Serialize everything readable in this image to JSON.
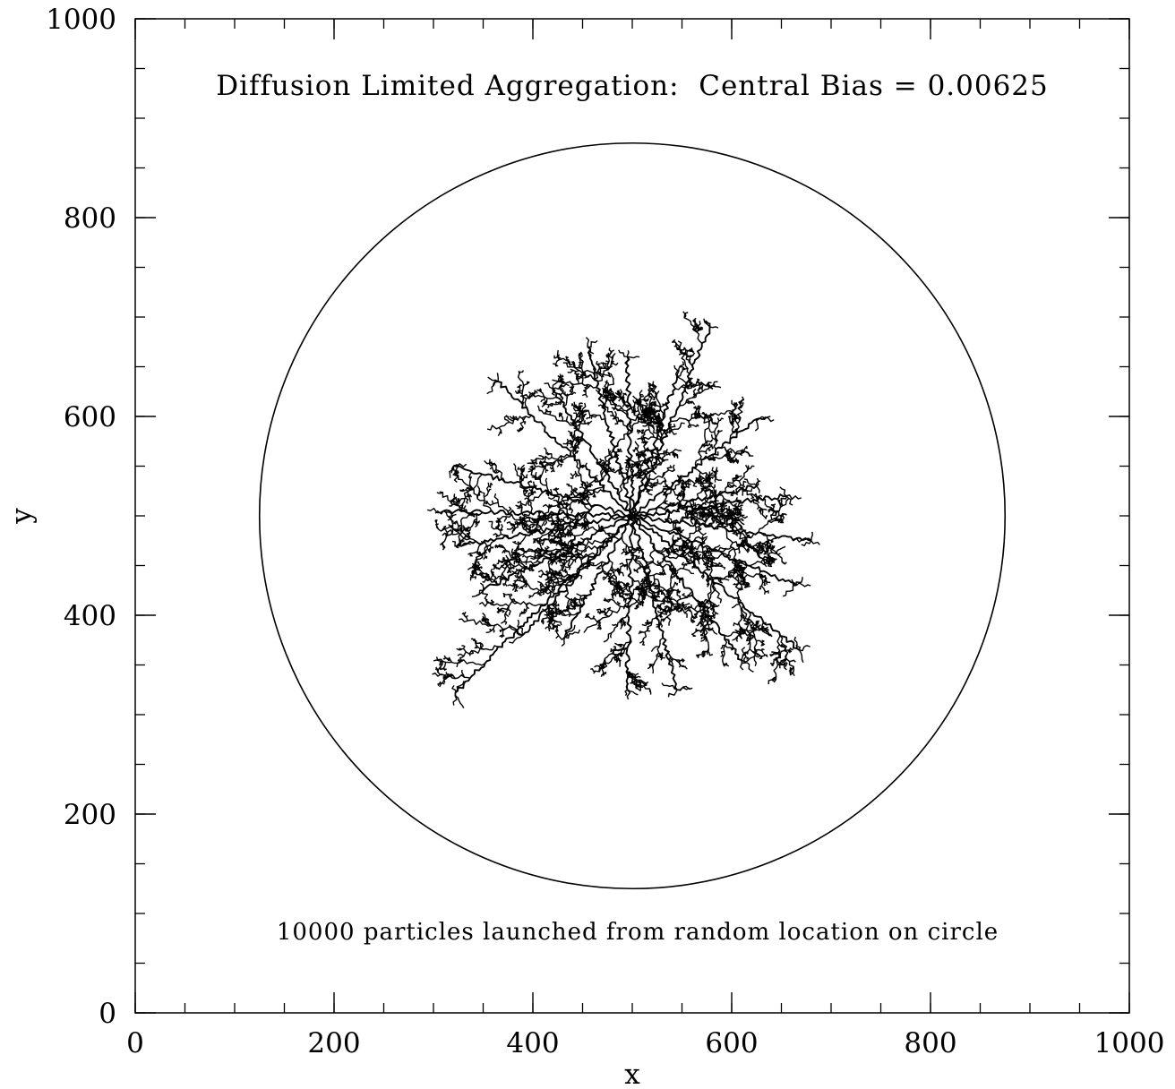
{
  "chart_data": {
    "type": "scatter",
    "title": "",
    "xlabel": "x",
    "ylabel": "y",
    "xlim": [
      0,
      1000
    ],
    "ylim": [
      0,
      1000
    ],
    "x_ticks": [
      0,
      200,
      400,
      600,
      800,
      1000
    ],
    "y_ticks": [
      0,
      200,
      400,
      600,
      800,
      1000
    ],
    "x_tick_labels": [
      "0",
      "200",
      "400",
      "600",
      "800",
      "1000"
    ],
    "y_tick_labels": [
      "0",
      "200",
      "400",
      "600",
      "800",
      "1000"
    ],
    "x_minor_step": 50,
    "y_minor_step": 50,
    "grid": false,
    "annotations": {
      "top": "Diffusion Limited Aggregation:  Central Bias = 0.00625",
      "bottom": "10000 particles launched from random location on circle"
    },
    "launch_circle": {
      "center": [
        500,
        500
      ],
      "radius": 375
    },
    "aggregate": {
      "center": [
        500,
        500
      ],
      "branches": [
        {
          "tip": [
            322,
            322
          ]
        },
        {
          "tip": [
            390,
            380
          ]
        },
        {
          "tip": [
            432,
            378
          ]
        },
        {
          "tip": [
            495,
            325
          ]
        },
        {
          "tip": [
            545,
            325
          ]
        },
        {
          "tip": [
            610,
            355
          ]
        },
        {
          "tip": [
            668,
            365
          ]
        },
        {
          "tip": [
            665,
            430
          ]
        },
        {
          "tip": [
            680,
            475
          ]
        },
        {
          "tip": [
            655,
            520
          ]
        },
        {
          "tip": [
            625,
            530
          ]
        },
        {
          "tip": [
            628,
            598
          ]
        },
        {
          "tip": [
            578,
            690
          ]
        },
        {
          "tip": [
            545,
            640
          ]
        },
        {
          "tip": [
            495,
            660
          ]
        },
        {
          "tip": [
            455,
            670
          ]
        },
        {
          "tip": [
            420,
            628
          ]
        },
        {
          "tip": [
            365,
            635
          ]
        },
        {
          "tip": [
            320,
            550
          ]
        },
        {
          "tip": [
            310,
            505
          ]
        },
        {
          "tip": [
            325,
            470
          ]
        },
        {
          "tip": [
            350,
            425
          ]
        }
      ]
    }
  }
}
